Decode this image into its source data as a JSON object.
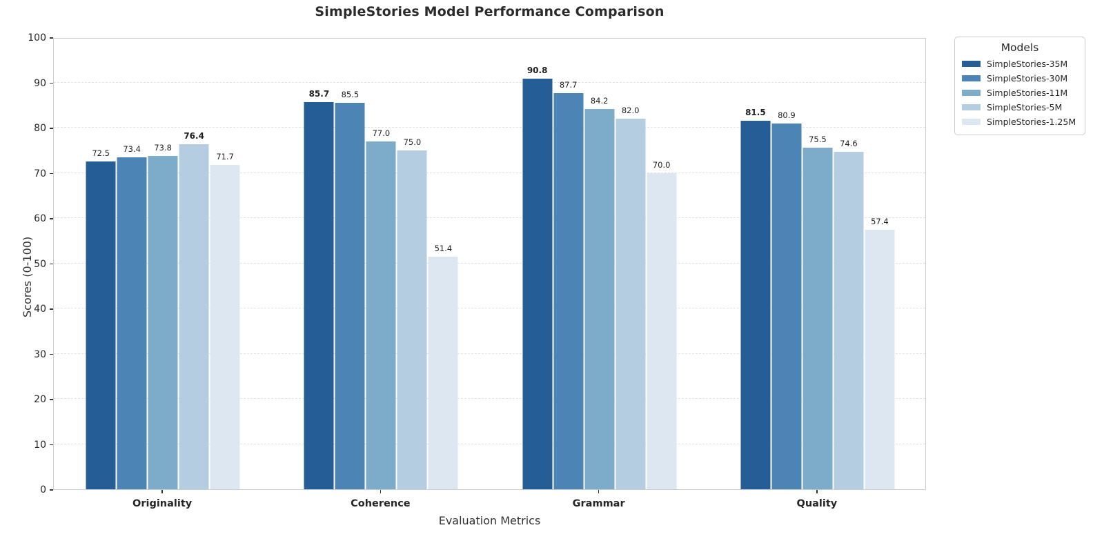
{
  "title": "SimpleStories Model Performance Comparison",
  "axes": {
    "xlabel": "Evaluation Metrics",
    "ylabel": "Scores (0-100)"
  },
  "legend": {
    "title": "Models"
  },
  "chart_data": {
    "type": "bar",
    "title": "SimpleStories Model Performance Comparison",
    "categories": [
      "Originality",
      "Coherence",
      "Grammar",
      "Quality"
    ],
    "series": [
      {
        "name": "SimpleStories-35M",
        "color": "#255e96",
        "values": [
          72.5,
          85.7,
          90.8,
          81.5
        ]
      },
      {
        "name": "SimpleStories-30M",
        "color": "#4b84b5",
        "values": [
          73.4,
          85.5,
          87.7,
          80.9
        ]
      },
      {
        "name": "SimpleStories-11M",
        "color": "#7dabca",
        "values": [
          73.8,
          77.0,
          84.2,
          75.5
        ]
      },
      {
        "name": "SimpleStories-5M",
        "color": "#b4cde1",
        "values": [
          76.4,
          75.0,
          82.0,
          74.6
        ]
      },
      {
        "name": "SimpleStories-1.25M",
        "color": "#dce7f2",
        "values": [
          71.7,
          51.4,
          70.0,
          57.4
        ]
      }
    ],
    "xlabel": "Evaluation Metrics",
    "ylabel": "Scores (0-100)",
    "ylim": [
      0,
      100
    ],
    "yticks": [
      0,
      10,
      20,
      30,
      40,
      50,
      60,
      70,
      80,
      90,
      100
    ],
    "value_label_decimals": 1,
    "bold_rule": "max value per category is bold",
    "grid": "horizontal dashed",
    "legend_title": "Models",
    "legend_position": "outside upper right"
  }
}
